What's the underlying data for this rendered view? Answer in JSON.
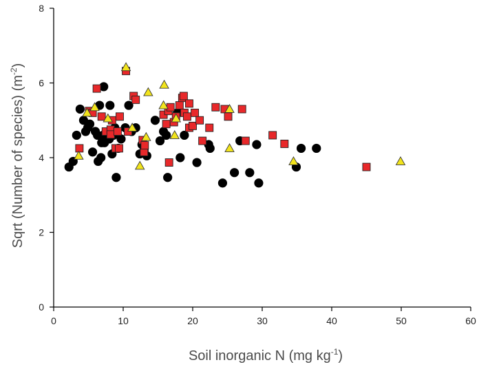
{
  "chart_data": {
    "type": "scatter",
    "title": "",
    "xlabel": {
      "text": "Soil inorganic N (mg kg",
      "sup": "-1",
      "suffix": ")"
    },
    "ylabel": {
      "text": "Sqrt (Number of species) (m",
      "sup": "-2",
      "suffix": ")"
    },
    "xlim": [
      0,
      60
    ],
    "ylim": [
      0,
      8
    ],
    "x_ticks": [
      0,
      10,
      20,
      30,
      40,
      50,
      60
    ],
    "y_ticks": [
      0,
      2,
      4,
      6,
      8
    ],
    "grid": false,
    "legend": "none",
    "series": [
      {
        "marker": "circle",
        "color": "#000000",
        "points": [
          [
            2.2,
            3.75
          ],
          [
            2.8,
            3.9
          ],
          [
            3.3,
            4.6
          ],
          [
            3.8,
            5.3
          ],
          [
            4.3,
            5.0
          ],
          [
            4.6,
            4.7
          ],
          [
            4.9,
            4.8
          ],
          [
            5.2,
            4.9
          ],
          [
            5.6,
            4.15
          ],
          [
            6.0,
            4.7
          ],
          [
            6.3,
            4.6
          ],
          [
            6.4,
            3.9
          ],
          [
            6.6,
            5.4
          ],
          [
            6.8,
            4.0
          ],
          [
            6.9,
            4.4
          ],
          [
            7.1,
            4.6
          ],
          [
            7.3,
            4.4
          ],
          [
            7.2,
            5.9
          ],
          [
            7.6,
            4.6
          ],
          [
            8.0,
            4.5
          ],
          [
            8.1,
            5.4
          ],
          [
            8.4,
            4.1
          ],
          [
            8.6,
            4.6
          ],
          [
            8.8,
            4.8
          ],
          [
            9.0,
            3.47
          ],
          [
            9.3,
            4.25
          ],
          [
            9.7,
            4.5
          ],
          [
            10.3,
            4.8
          ],
          [
            10.8,
            5.4
          ],
          [
            11.2,
            4.7
          ],
          [
            11.8,
            4.8
          ],
          [
            12.4,
            4.1
          ],
          [
            12.7,
            4.35
          ],
          [
            13.0,
            4.2
          ],
          [
            13.4,
            4.05
          ],
          [
            14.6,
            5.0
          ],
          [
            15.3,
            4.45
          ],
          [
            15.8,
            4.7
          ],
          [
            16.2,
            4.6
          ],
          [
            16.4,
            3.47
          ],
          [
            17.8,
            5.2
          ],
          [
            18.2,
            4.0
          ],
          [
            18.8,
            4.6
          ],
          [
            20.6,
            3.87
          ],
          [
            22.3,
            4.35
          ],
          [
            22.5,
            4.25
          ],
          [
            24.3,
            3.32
          ],
          [
            26.0,
            3.6
          ],
          [
            26.8,
            4.45
          ],
          [
            28.2,
            3.6
          ],
          [
            29.2,
            4.35
          ],
          [
            29.5,
            3.32
          ],
          [
            34.9,
            3.75
          ],
          [
            35.6,
            4.25
          ],
          [
            37.8,
            4.25
          ]
        ]
      },
      {
        "marker": "square",
        "color": "#e8282a",
        "points": [
          [
            3.7,
            4.25
          ],
          [
            5.1,
            5.25
          ],
          [
            5.6,
            5.2
          ],
          [
            6.2,
            5.85
          ],
          [
            6.9,
            5.1
          ],
          [
            7.5,
            4.7
          ],
          [
            8.2,
            4.75
          ],
          [
            8.2,
            4.62
          ],
          [
            8.4,
            5.0
          ],
          [
            8.9,
            4.25
          ],
          [
            9.2,
            4.7
          ],
          [
            9.4,
            4.25
          ],
          [
            9.5,
            5.1
          ],
          [
            10.4,
            6.32
          ],
          [
            10.7,
            4.7
          ],
          [
            11.5,
            5.65
          ],
          [
            11.8,
            5.55
          ],
          [
            12.8,
            4.47
          ],
          [
            13.0,
            4.15
          ],
          [
            13.1,
            4.33
          ],
          [
            15.8,
            5.15
          ],
          [
            16.2,
            4.9
          ],
          [
            16.5,
            5.25
          ],
          [
            16.6,
            3.87
          ],
          [
            16.8,
            5.35
          ],
          [
            17.3,
            4.95
          ],
          [
            17.6,
            5.1
          ],
          [
            18.1,
            5.4
          ],
          [
            18.5,
            5.6
          ],
          [
            18.7,
            5.65
          ],
          [
            18.8,
            5.2
          ],
          [
            19.2,
            5.1
          ],
          [
            19.5,
            4.8
          ],
          [
            19.5,
            5.45
          ],
          [
            20.0,
            4.85
          ],
          [
            20.3,
            5.2
          ],
          [
            21.0,
            5.0
          ],
          [
            21.4,
            4.45
          ],
          [
            22.4,
            4.8
          ],
          [
            23.3,
            5.35
          ],
          [
            24.6,
            5.3
          ],
          [
            25.1,
            5.1
          ],
          [
            27.1,
            5.3
          ],
          [
            27.6,
            4.45
          ],
          [
            31.5,
            4.6
          ],
          [
            33.2,
            4.37
          ],
          [
            45.0,
            3.75
          ]
        ]
      },
      {
        "marker": "triangle",
        "color": "#f2e41c",
        "points": [
          [
            3.6,
            4.05
          ],
          [
            4.8,
            5.2
          ],
          [
            5.9,
            5.35
          ],
          [
            7.8,
            5.05
          ],
          [
            10.4,
            6.42
          ],
          [
            11.3,
            4.8
          ],
          [
            12.4,
            3.78
          ],
          [
            13.3,
            4.55
          ],
          [
            13.6,
            5.75
          ],
          [
            15.8,
            5.4
          ],
          [
            15.9,
            5.95
          ],
          [
            17.4,
            4.6
          ],
          [
            17.6,
            5.05
          ],
          [
            25.3,
            4.25
          ],
          [
            25.3,
            5.3
          ],
          [
            34.5,
            3.9
          ],
          [
            49.9,
            3.9
          ]
        ]
      }
    ]
  }
}
